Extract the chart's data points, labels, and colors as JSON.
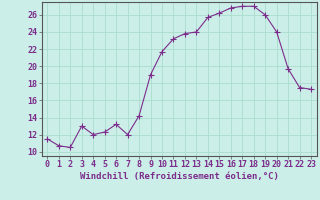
{
  "x": [
    0,
    1,
    2,
    3,
    4,
    5,
    6,
    7,
    8,
    9,
    10,
    11,
    12,
    13,
    14,
    15,
    16,
    17,
    18,
    19,
    20,
    21,
    22,
    23
  ],
  "y": [
    11.5,
    10.7,
    10.5,
    13.0,
    12.0,
    12.3,
    13.2,
    12.0,
    14.2,
    19.0,
    21.7,
    23.2,
    23.8,
    24.0,
    25.7,
    26.2,
    26.8,
    27.0,
    27.0,
    26.0,
    24.0,
    19.7,
    17.5,
    17.3
  ],
  "line_color": "#7b2d8b",
  "marker": "+",
  "marker_size": 4,
  "bg_color": "#cceee8",
  "grid_color": "#aaddcc",
  "ylabel_ticks": [
    10,
    12,
    14,
    16,
    18,
    20,
    22,
    24,
    26
  ],
  "ylim": [
    9.5,
    27.5
  ],
  "xlim": [
    -0.5,
    23.5
  ],
  "xlabel": "Windchill (Refroidissement éolien,°C)",
  "xlabel_fontsize": 6.5,
  "tick_fontsize": 6,
  "tick_color": "#7b2d8b",
  "spine_color": "#555555"
}
